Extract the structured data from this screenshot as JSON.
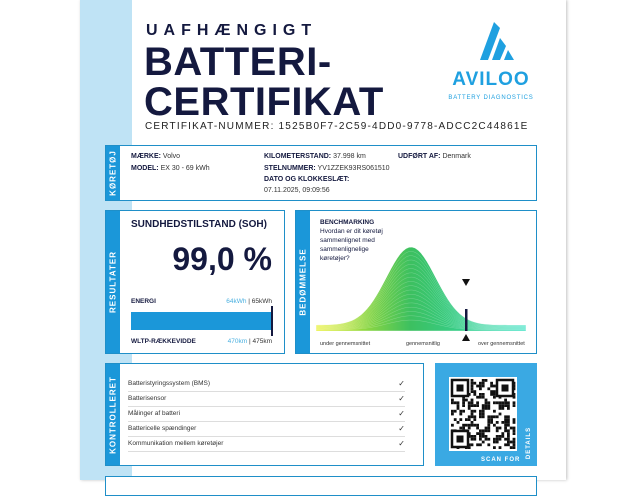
{
  "header": {
    "subtitle": "UAFHÆNGIGT",
    "title_line1": "BATTERI-",
    "title_line2": "CERTIFIKAT",
    "certificate_number": "CERTIFIKAT-NUMMER: 1525B0F7-2C59-4DD0-9778-ADCC2C44861E"
  },
  "logo": {
    "name": "AVILOO",
    "tagline": "BATTERY DIAGNOSTICS"
  },
  "vehicle": {
    "tab": "KØRETØJ",
    "brand_label": "MÆRKE:",
    "brand": "Volvo",
    "model_label": "MODEL:",
    "model": "EX 30 - 69 kWh",
    "mileage_label": "KILOMETERSTAND:",
    "mileage": "37.998 km",
    "vin_label": "STELNUMMER:",
    "vin": "YV1ZZEK93RS061510",
    "date_label": "DATO OG KLOKKESLÆT:",
    "date": "07.11.2025, 09:09:56",
    "performed_label": "UDFØRT AF:",
    "performed": "Denmark"
  },
  "results": {
    "tab": "RESULTATER",
    "soh_title": "SUNDHEDSTILSTAND (SOH)",
    "soh_value": "99,0 %",
    "energy_label": "ENERGI",
    "energy_current": "64kWh",
    "energy_sep": " | ",
    "energy_nominal": "65kWh",
    "range_label": "WLTP-RÆKKEVIDDE",
    "range_current": "470km",
    "range_sep": " | ",
    "range_nominal": "475km",
    "fill_percent": 99
  },
  "benchmark": {
    "tab": "BEDØMMELSE",
    "title": "BENCHMARKING",
    "question": "Hvordan er dit køretøj sammenlignet med sammenlignelige køretøjer?",
    "axis": [
      "under gennemsnittet",
      "gennemsnitlig",
      "over gennemsnittet"
    ]
  },
  "checks": {
    "tab": "KONTROLLERET",
    "items": [
      "Batteristyringssystem (BMS)",
      "Batterisensor",
      "Målinger af batteri",
      "Battericelle spændinger",
      "Kommunikation mellem køretøjer"
    ]
  },
  "qr": {
    "label": "SCAN FOR",
    "label2": "DETAILS"
  },
  "colors": {
    "navy": "#14193f",
    "blue": "#1b97d9",
    "light": "#bfe3f5"
  }
}
